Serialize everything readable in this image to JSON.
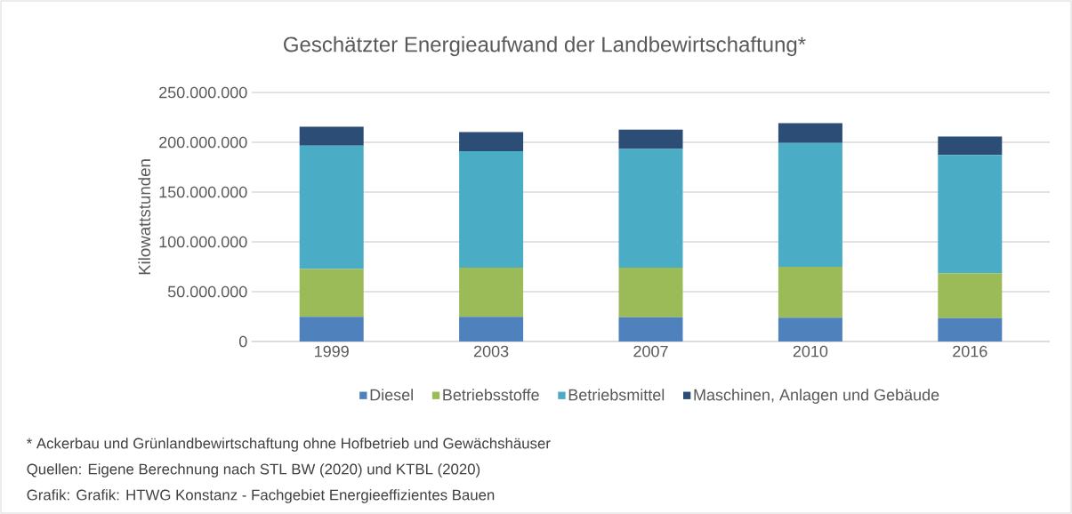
{
  "chart_data": {
    "type": "bar",
    "stacked": true,
    "title": "Geschätzter Energieaufwand der Landbewirtschaftung*",
    "ylabel": "Kilowattstunden",
    "categories": [
      "1999",
      "2003",
      "2007",
      "2010",
      "2016"
    ],
    "series": [
      {
        "name": "Diesel",
        "color": "#4f81bd",
        "values": [
          24700000,
          24700000,
          24400000,
          23800000,
          23500000
        ]
      },
      {
        "name": "Betriebsstoffe",
        "color": "#9bbb59",
        "values": [
          48100000,
          49300000,
          49600000,
          51100000,
          45100000
        ]
      },
      {
        "name": "Betriebsmittel",
        "color": "#4bacc6",
        "values": [
          123900000,
          117000000,
          119400000,
          124400000,
          118600000
        ]
      },
      {
        "name": "Maschinen, Anlagen und Gebäude",
        "color": "#2c4d75",
        "values": [
          19000000,
          19300000,
          19300000,
          20000000,
          18700000
        ]
      }
    ],
    "ylim": [
      0,
      250000000
    ],
    "yticks": [
      {
        "value": 0,
        "label": "0"
      },
      {
        "value": 50000000,
        "label": "50.000.000"
      },
      {
        "value": 100000000,
        "label": "100.000.000"
      },
      {
        "value": 150000000,
        "label": "150.000.000"
      },
      {
        "value": 200000000,
        "label": "200.000.000"
      },
      {
        "value": 250000000,
        "label": "250.000.000"
      }
    ],
    "grid": "y",
    "legend": "bottom",
    "annotations": [
      "* Ackerbau und Grünlandbewirtschaftung ohne Hofbetrieb und Gewächshäuser",
      "Quellen: Eigene Berechnung nach STL BW (2020) und KTBL (2020)",
      "Grafik: Grafik: HTWG Konstanz - Fachgebiet Energieeffizientes Bauen"
    ]
  }
}
